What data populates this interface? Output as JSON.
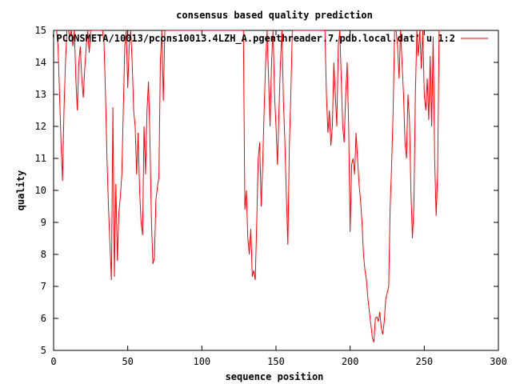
{
  "chart_data": {
    "type": "line",
    "title": "consensus based quality prediction",
    "xlabel": "sequence position",
    "ylabel": "quality",
    "xlim": [
      0,
      300
    ],
    "ylim": [
      5,
      15
    ],
    "x_ticks": [
      0,
      50,
      100,
      150,
      200,
      250,
      300
    ],
    "y_ticks": [
      5,
      6,
      7,
      8,
      9,
      10,
      11,
      12,
      13,
      14,
      15
    ],
    "grid": false,
    "legend_position": "top-right",
    "series": [
      {
        "name": "'PCONSMETA/10013/pcons10013.4LZH_A.pgenthreader.7.pdb.local.dat' u 1:2",
        "color": "#ff0000",
        "points": [
          [
            1,
            15
          ],
          [
            2,
            15
          ],
          [
            3,
            14.5
          ],
          [
            4,
            13
          ],
          [
            5,
            11.5
          ],
          [
            6,
            10.3
          ],
          [
            7,
            12.5
          ],
          [
            8,
            14
          ],
          [
            9,
            15
          ],
          [
            10,
            15
          ],
          [
            11,
            14.8
          ],
          [
            12,
            15
          ],
          [
            13,
            14.5
          ],
          [
            14,
            15
          ],
          [
            15,
            13.5
          ],
          [
            16,
            12.5
          ],
          [
            17,
            14
          ],
          [
            18,
            14.5
          ],
          [
            19,
            13.5
          ],
          [
            20,
            12.9
          ],
          [
            21,
            13.8
          ],
          [
            22,
            14.5
          ],
          [
            23,
            15
          ],
          [
            24,
            14.3
          ],
          [
            25,
            15
          ],
          [
            26,
            15
          ],
          [
            27,
            15
          ],
          [
            28,
            15
          ],
          [
            29,
            15
          ],
          [
            30,
            15
          ],
          [
            31,
            15
          ],
          [
            32,
            15
          ],
          [
            33,
            15
          ],
          [
            34,
            14.6
          ],
          [
            35,
            13
          ],
          [
            36,
            11
          ],
          [
            37,
            9.5
          ],
          [
            38,
            8.3
          ],
          [
            39,
            7.2
          ],
          [
            40,
            12.6
          ],
          [
            41,
            7.3
          ],
          [
            42,
            10.2
          ],
          [
            43,
            7.8
          ],
          [
            44,
            9.3
          ],
          [
            45,
            9.8
          ],
          [
            46,
            10.5
          ],
          [
            47,
            12.5
          ],
          [
            48,
            14.5
          ],
          [
            49,
            15
          ],
          [
            50,
            13.2
          ],
          [
            51,
            14.5
          ],
          [
            52,
            15
          ],
          [
            53,
            14
          ],
          [
            54,
            12.5
          ],
          [
            55,
            12
          ],
          [
            56,
            10.5
          ],
          [
            57,
            11.8
          ],
          [
            58,
            10
          ],
          [
            59,
            9
          ],
          [
            60,
            8.6
          ],
          [
            61,
            12
          ],
          [
            62,
            10.5
          ],
          [
            63,
            12.5
          ],
          [
            64,
            13.4
          ],
          [
            65,
            11.5
          ],
          [
            66,
            9
          ],
          [
            67,
            7.7
          ],
          [
            68,
            7.9
          ],
          [
            69,
            9.7
          ],
          [
            70,
            10.1
          ],
          [
            71,
            10.4
          ],
          [
            72,
            14
          ],
          [
            73,
            15
          ],
          [
            74,
            12.8
          ],
          [
            75,
            15
          ],
          [
            76,
            15
          ],
          [
            128,
            15
          ],
          [
            129,
            9.4
          ],
          [
            130,
            10
          ],
          [
            131,
            8.5
          ],
          [
            132,
            8
          ],
          [
            133,
            8.8
          ],
          [
            134,
            7.3
          ],
          [
            135,
            7.5
          ],
          [
            136,
            7.2
          ],
          [
            137,
            9
          ],
          [
            138,
            11
          ],
          [
            139,
            11.5
          ],
          [
            140,
            9.5
          ],
          [
            141,
            10.8
          ],
          [
            142,
            12.5
          ],
          [
            143,
            14
          ],
          [
            144,
            15
          ],
          [
            145,
            13.5
          ],
          [
            146,
            12
          ],
          [
            147,
            14
          ],
          [
            148,
            15
          ],
          [
            149,
            13
          ],
          [
            150,
            12
          ],
          [
            151,
            10.8
          ],
          [
            152,
            12.5
          ],
          [
            153,
            14
          ],
          [
            154,
            15
          ],
          [
            155,
            12.8
          ],
          [
            156,
            11.5
          ],
          [
            157,
            9.8
          ],
          [
            158,
            8.3
          ],
          [
            159,
            11.4
          ],
          [
            160,
            13
          ],
          [
            161,
            15
          ],
          [
            162,
            15
          ],
          [
            183,
            15
          ],
          [
            184,
            13
          ],
          [
            185,
            11.8
          ],
          [
            186,
            12.5
          ],
          [
            187,
            11.4
          ],
          [
            188,
            12
          ],
          [
            189,
            14
          ],
          [
            190,
            13
          ],
          [
            191,
            12
          ],
          [
            192,
            14.5
          ],
          [
            193,
            15
          ],
          [
            194,
            13.5
          ],
          [
            195,
            12
          ],
          [
            196,
            11.5
          ],
          [
            197,
            13
          ],
          [
            198,
            14
          ],
          [
            199,
            12
          ],
          [
            200,
            8.7
          ],
          [
            201,
            10.8
          ],
          [
            202,
            11
          ],
          [
            203,
            10.5
          ],
          [
            204,
            11.8
          ],
          [
            205,
            11
          ],
          [
            206,
            10.2
          ],
          [
            207,
            9.7
          ],
          [
            208,
            9
          ],
          [
            209,
            8
          ],
          [
            210,
            7.5
          ],
          [
            211,
            7.2
          ],
          [
            212,
            6.6
          ],
          [
            213,
            6.2
          ],
          [
            214,
            5.8
          ],
          [
            215,
            5.4
          ],
          [
            216,
            5.25
          ],
          [
            217,
            6
          ],
          [
            218,
            6.05
          ],
          [
            219,
            5.9
          ],
          [
            220,
            6.2
          ],
          [
            221,
            5.7
          ],
          [
            222,
            5.5
          ],
          [
            223,
            5.9
          ],
          [
            224,
            6.6
          ],
          [
            225,
            6.8
          ],
          [
            226,
            7
          ],
          [
            227,
            9.5
          ],
          [
            228,
            10.8
          ],
          [
            229,
            12.5
          ],
          [
            230,
            15
          ],
          [
            231,
            15
          ],
          [
            232,
            14.5
          ],
          [
            233,
            13.5
          ],
          [
            234,
            15
          ],
          [
            235,
            14
          ],
          [
            236,
            13
          ],
          [
            237,
            11.5
          ],
          [
            238,
            11
          ],
          [
            239,
            13
          ],
          [
            240,
            12.2
          ],
          [
            241,
            10
          ],
          [
            242,
            8.5
          ],
          [
            243,
            9.5
          ],
          [
            244,
            13
          ],
          [
            245,
            15
          ],
          [
            246,
            14.2
          ],
          [
            247,
            15
          ],
          [
            248,
            13.8
          ],
          [
            249,
            15
          ],
          [
            250,
            13
          ],
          [
            251,
            12.5
          ],
          [
            252,
            13.5
          ],
          [
            253,
            12.2
          ],
          [
            254,
            14.2
          ],
          [
            255,
            12
          ],
          [
            256,
            14.8
          ],
          [
            257,
            11
          ],
          [
            258,
            9.2
          ],
          [
            259,
            10.5
          ],
          [
            260,
            15
          ],
          [
            261,
            15
          ]
        ]
      }
    ]
  }
}
